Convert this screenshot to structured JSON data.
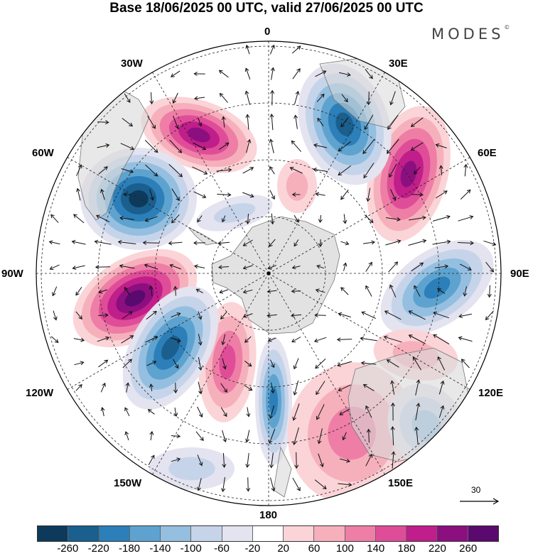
{
  "title": "Base 18/06/2025 00 UTC, valid 27/06/2025 00 UTC",
  "brand": "MODES",
  "brand_mark": "©",
  "longitude_labels": {
    "top": "0",
    "bottom": "180",
    "left": "90W",
    "right": "90E",
    "w30": "30W",
    "e30": "30E",
    "w60": "60W",
    "e60": "60E",
    "w120": "120W",
    "e120": "120E",
    "w150": "150W",
    "e150": "150E"
  },
  "vector_scale_label": "30",
  "colorbar": {
    "colors": [
      "#0d3a5a",
      "#1a5f8e",
      "#2c7fb8",
      "#5ea3cf",
      "#95bfe0",
      "#c6d4ea",
      "#e4e3f0",
      "#ffffff",
      "#fbd4d8",
      "#f6b0bc",
      "#ee7ea6",
      "#df4d98",
      "#c01e8a",
      "#8c0f80",
      "#5a0a6e"
    ],
    "tick_labels": [
      "-260",
      "-220",
      "-180",
      "-140",
      "-100",
      "-60",
      "-20",
      "20",
      "60",
      "100",
      "140",
      "180",
      "220",
      "260"
    ]
  },
  "colors": {
    "land": "#d8d8d8",
    "coast": "#777777",
    "grid": "#222222"
  }
}
